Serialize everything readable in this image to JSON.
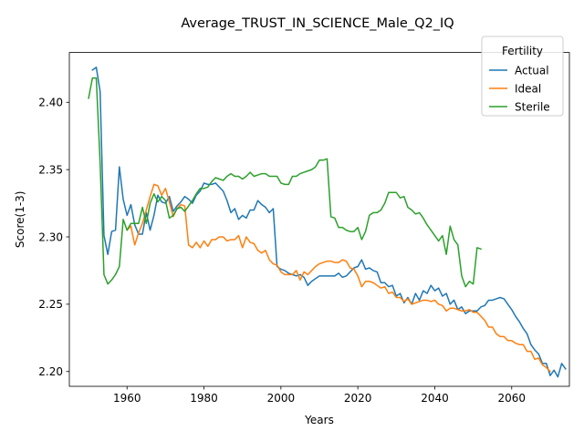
{
  "chart_data": {
    "type": "line",
    "title": "Average_TRUST_IN_SCIENCE_Male_Q2_IQ",
    "xlabel": "Years",
    "ylabel": "Score(1-3)",
    "xlim": [
      1945,
      2075
    ],
    "ylim": [
      2.189,
      2.437
    ],
    "xticks": [
      1960,
      1980,
      2000,
      2020,
      2040,
      2060
    ],
    "yticks": [
      2.2,
      2.25,
      2.3,
      2.35,
      2.4
    ],
    "xtick_labels": [
      "1960",
      "1980",
      "2000",
      "2020",
      "2040",
      "2060"
    ],
    "ytick_labels": [
      "2.20",
      "2.25",
      "2.30",
      "2.35",
      "2.40"
    ],
    "grid": false,
    "legend": {
      "title": "Fertility",
      "placement": "top-right"
    },
    "series": [
      {
        "name": "Actual",
        "color": "#1f77b4",
        "x_start": 1951,
        "values": [
          2.424,
          2.426,
          2.408,
          2.301,
          2.287,
          2.304,
          2.305,
          2.352,
          2.328,
          2.316,
          2.324,
          2.309,
          2.302,
          2.302,
          2.318,
          2.305,
          2.316,
          2.331,
          2.326,
          2.325,
          2.33,
          2.319,
          2.323,
          2.326,
          2.33,
          2.328,
          2.325,
          2.331,
          2.334,
          2.34,
          2.339,
          2.339,
          2.34,
          2.337,
          2.334,
          2.327,
          2.318,
          2.321,
          2.313,
          2.316,
          2.314,
          2.32,
          2.32,
          2.327,
          2.324,
          2.322,
          2.318,
          2.321,
          2.278,
          2.276,
          2.275,
          2.273,
          2.272,
          2.271,
          2.272,
          2.27,
          2.264,
          2.267,
          2.269,
          2.271,
          2.271,
          2.271,
          2.271,
          2.271,
          2.273,
          2.27,
          2.271,
          2.274,
          2.277,
          2.278,
          2.283,
          2.276,
          2.277,
          2.275,
          2.274,
          2.266,
          2.266,
          2.263,
          2.264,
          2.256,
          2.258,
          2.251,
          2.255,
          2.25,
          2.258,
          2.253,
          2.26,
          2.258,
          2.264,
          2.26,
          2.262,
          2.256,
          2.258,
          2.25,
          2.253,
          2.246,
          2.248,
          2.243,
          2.245,
          2.245,
          2.245,
          2.248,
          2.249,
          2.253,
          2.253,
          2.254,
          2.255,
          2.254,
          2.25,
          2.246,
          2.241,
          2.237,
          2.232,
          2.228,
          2.22,
          2.216,
          2.213,
          2.206,
          2.206,
          2.197,
          2.201,
          2.196,
          2.206,
          2.202
        ]
      },
      {
        "name": "Ideal",
        "color": "#ff7f0e",
        "x_start": 1960,
        "values": [
          2.305,
          2.308,
          2.294,
          2.303,
          2.31,
          2.32,
          2.33,
          2.339,
          2.338,
          2.331,
          2.336,
          2.326,
          2.315,
          2.321,
          2.324,
          2.323,
          2.294,
          2.292,
          2.296,
          2.292,
          2.297,
          2.293,
          2.298,
          2.298,
          2.3,
          2.3,
          2.297,
          2.298,
          2.298,
          2.301,
          2.292,
          2.3,
          2.296,
          2.295,
          2.29,
          2.288,
          2.29,
          2.283,
          2.28,
          2.279,
          2.274,
          2.272,
          2.272,
          2.272,
          2.275,
          2.268,
          2.274,
          2.272,
          2.275,
          2.278,
          2.28,
          2.281,
          2.282,
          2.282,
          2.281,
          2.281,
          2.283,
          2.282,
          2.277,
          2.276,
          2.271,
          2.263,
          2.267,
          2.267,
          2.266,
          2.264,
          2.262,
          2.263,
          2.258,
          2.259,
          2.255,
          2.255,
          2.252,
          2.254,
          2.25,
          2.251,
          2.252,
          2.253,
          2.253,
          2.252,
          2.253,
          2.25,
          2.249,
          2.245,
          2.247,
          2.247,
          2.246,
          2.245,
          2.245,
          2.246,
          2.244,
          2.244,
          2.241,
          2.238,
          2.233,
          2.233,
          2.228,
          2.226,
          2.226,
          2.223,
          2.223,
          2.221,
          2.22,
          2.22,
          2.215,
          2.215,
          2.209,
          2.21,
          2.205,
          2.203,
          2.2
        ]
      },
      {
        "name": "Sterile",
        "color": "#2ca02c",
        "x_start": 1950,
        "values": [
          2.403,
          2.418,
          2.418,
          2.355,
          2.272,
          2.265,
          2.268,
          2.272,
          2.278,
          2.313,
          2.305,
          2.31,
          2.31,
          2.31,
          2.322,
          2.31,
          2.325,
          2.332,
          2.326,
          2.33,
          2.327,
          2.314,
          2.316,
          2.321,
          2.322,
          2.319,
          2.323,
          2.327,
          2.332,
          2.336,
          2.336,
          2.337,
          2.341,
          2.344,
          2.343,
          2.342,
          2.345,
          2.347,
          2.345,
          2.345,
          2.343,
          2.345,
          2.348,
          2.345,
          2.346,
          2.347,
          2.347,
          2.345,
          2.345,
          2.345,
          2.34,
          2.339,
          2.339,
          2.345,
          2.345,
          2.347,
          2.348,
          2.349,
          2.35,
          2.352,
          2.357,
          2.357,
          2.358,
          2.315,
          2.314,
          2.307,
          2.307,
          2.305,
          2.304,
          2.304,
          2.307,
          2.298,
          2.304,
          2.316,
          2.318,
          2.318,
          2.32,
          2.325,
          2.333,
          2.333,
          2.333,
          2.329,
          2.33,
          2.322,
          2.32,
          2.317,
          2.318,
          2.314,
          2.309,
          2.305,
          2.301,
          2.297,
          2.301,
          2.287,
          2.308,
          2.298,
          2.294,
          2.271,
          2.263,
          2.267,
          2.265,
          2.292,
          2.291
        ]
      }
    ]
  }
}
